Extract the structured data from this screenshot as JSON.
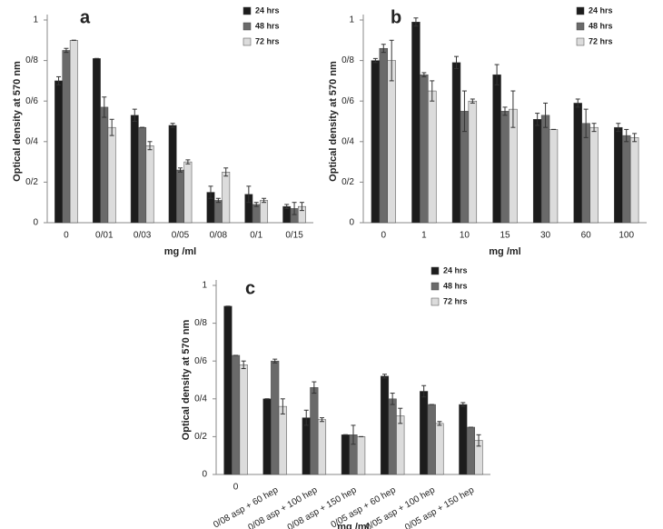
{
  "chart_data": [
    {
      "type": "bar",
      "label": "a",
      "ylabel": "Optical density at 570 nm",
      "xlabel": "mg /ml",
      "categories": [
        "0",
        "0/01",
        "0/03",
        "0/05",
        "0/08",
        "0/1",
        "0/15"
      ],
      "series": [
        {
          "name": "24 hrs",
          "color": "#1c1c1c",
          "values": [
            0.7,
            0.81,
            0.53,
            0.48,
            0.15,
            0.14,
            0.08
          ],
          "errors": [
            0.02,
            0,
            0.03,
            0.01,
            0.03,
            0.04,
            0.01
          ]
        },
        {
          "name": "48 hrs",
          "color": "#6a6a6a",
          "values": [
            0.85,
            0.57,
            0.47,
            0.26,
            0.11,
            0.09,
            0.07
          ],
          "errors": [
            0.01,
            0.05,
            0,
            0.01,
            0.01,
            0.01,
            0.03
          ]
        },
        {
          "name": "72 hrs",
          "color": "#dcdcdc",
          "values": [
            0.9,
            0.47,
            0.38,
            0.3,
            0.25,
            0.11,
            0.08
          ],
          "errors": [
            0,
            0.04,
            0.02,
            0.01,
            0.02,
            0.01,
            0.02
          ]
        }
      ],
      "ylim": [
        0,
        1
      ],
      "yticks": [
        0,
        {
          "value": 0.2,
          "label": "0/2"
        },
        {
          "value": 0.4,
          "label": "0/4"
        },
        {
          "value": 0.6,
          "label": "0/6"
        },
        {
          "value": 0.8,
          "label": "0/8"
        },
        1
      ],
      "legend": "upper right"
    },
    {
      "type": "bar",
      "label": "b",
      "ylabel": "Optical density at 570 nm",
      "xlabel": "mg /ml",
      "categories": [
        "0",
        "1",
        "10",
        "15",
        "30",
        "60",
        "100"
      ],
      "series": [
        {
          "name": "24 hrs",
          "color": "#1c1c1c",
          "values": [
            0.8,
            0.99,
            0.79,
            0.73,
            0.51,
            0.59,
            0.47
          ],
          "errors": [
            0.01,
            0.02,
            0.03,
            0.05,
            0.03,
            0.02,
            0.02
          ]
        },
        {
          "name": "48 hrs",
          "color": "#6a6a6a",
          "values": [
            0.86,
            0.73,
            0.55,
            0.55,
            0.53,
            0.49,
            0.43
          ],
          "errors": [
            0.02,
            0.01,
            0.1,
            0.02,
            0.06,
            0.07,
            0.03
          ]
        },
        {
          "name": "72 hrs",
          "color": "#dcdcdc",
          "values": [
            0.8,
            0.65,
            0.6,
            0.56,
            0.46,
            0.47,
            0.42
          ],
          "errors": [
            0.1,
            0.05,
            0.01,
            0.09,
            0,
            0.02,
            0.02
          ]
        }
      ],
      "ylim": [
        0,
        1
      ],
      "yticks": [
        0,
        {
          "value": 0.2,
          "label": "0/2"
        },
        {
          "value": 0.4,
          "label": "0/4"
        },
        {
          "value": 0.6,
          "label": "0/6"
        },
        {
          "value": 0.8,
          "label": "0/8"
        },
        1
      ],
      "legend": "upper right"
    },
    {
      "type": "bar",
      "label": "c",
      "ylabel": "Optical density at 570 nm",
      "xlabel": "mg /ml",
      "categories": [
        "0",
        "0/08 asp + 60 hep",
        "0/08 asp + 100 hep",
        "0/08 asp + 150 hep",
        "0/05 asp + 60 hep",
        "0/05 asp + 100 hep",
        "0/05 asp + 150 hep"
      ],
      "series": [
        {
          "name": "24 hrs",
          "color": "#1c1c1c",
          "values": [
            0.89,
            0.4,
            0.3,
            0.21,
            0.52,
            0.44,
            0.37
          ],
          "errors": [
            0,
            0,
            0.04,
            0,
            0.01,
            0.03,
            0.01
          ]
        },
        {
          "name": "48 hrs",
          "color": "#6a6a6a",
          "values": [
            0.63,
            0.6,
            0.46,
            0.21,
            0.4,
            0.37,
            0.25
          ],
          "errors": [
            0,
            0.01,
            0.03,
            0.05,
            0.03,
            0,
            0
          ]
        },
        {
          "name": "72 hrs",
          "color": "#dcdcdc",
          "values": [
            0.58,
            0.36,
            0.29,
            0.2,
            0.31,
            0.27,
            0.18
          ],
          "errors": [
            0.02,
            0.04,
            0.01,
            0,
            0.04,
            0.01,
            0.03
          ]
        }
      ],
      "ylim": [
        0,
        1
      ],
      "yticks": [
        0,
        {
          "value": 0.2,
          "label": "0/2"
        },
        {
          "value": 0.4,
          "label": "0/4"
        },
        {
          "value": 0.6,
          "label": "0/6"
        },
        {
          "value": 0.8,
          "label": "0/8"
        },
        1
      ],
      "legend": "upper right"
    }
  ]
}
